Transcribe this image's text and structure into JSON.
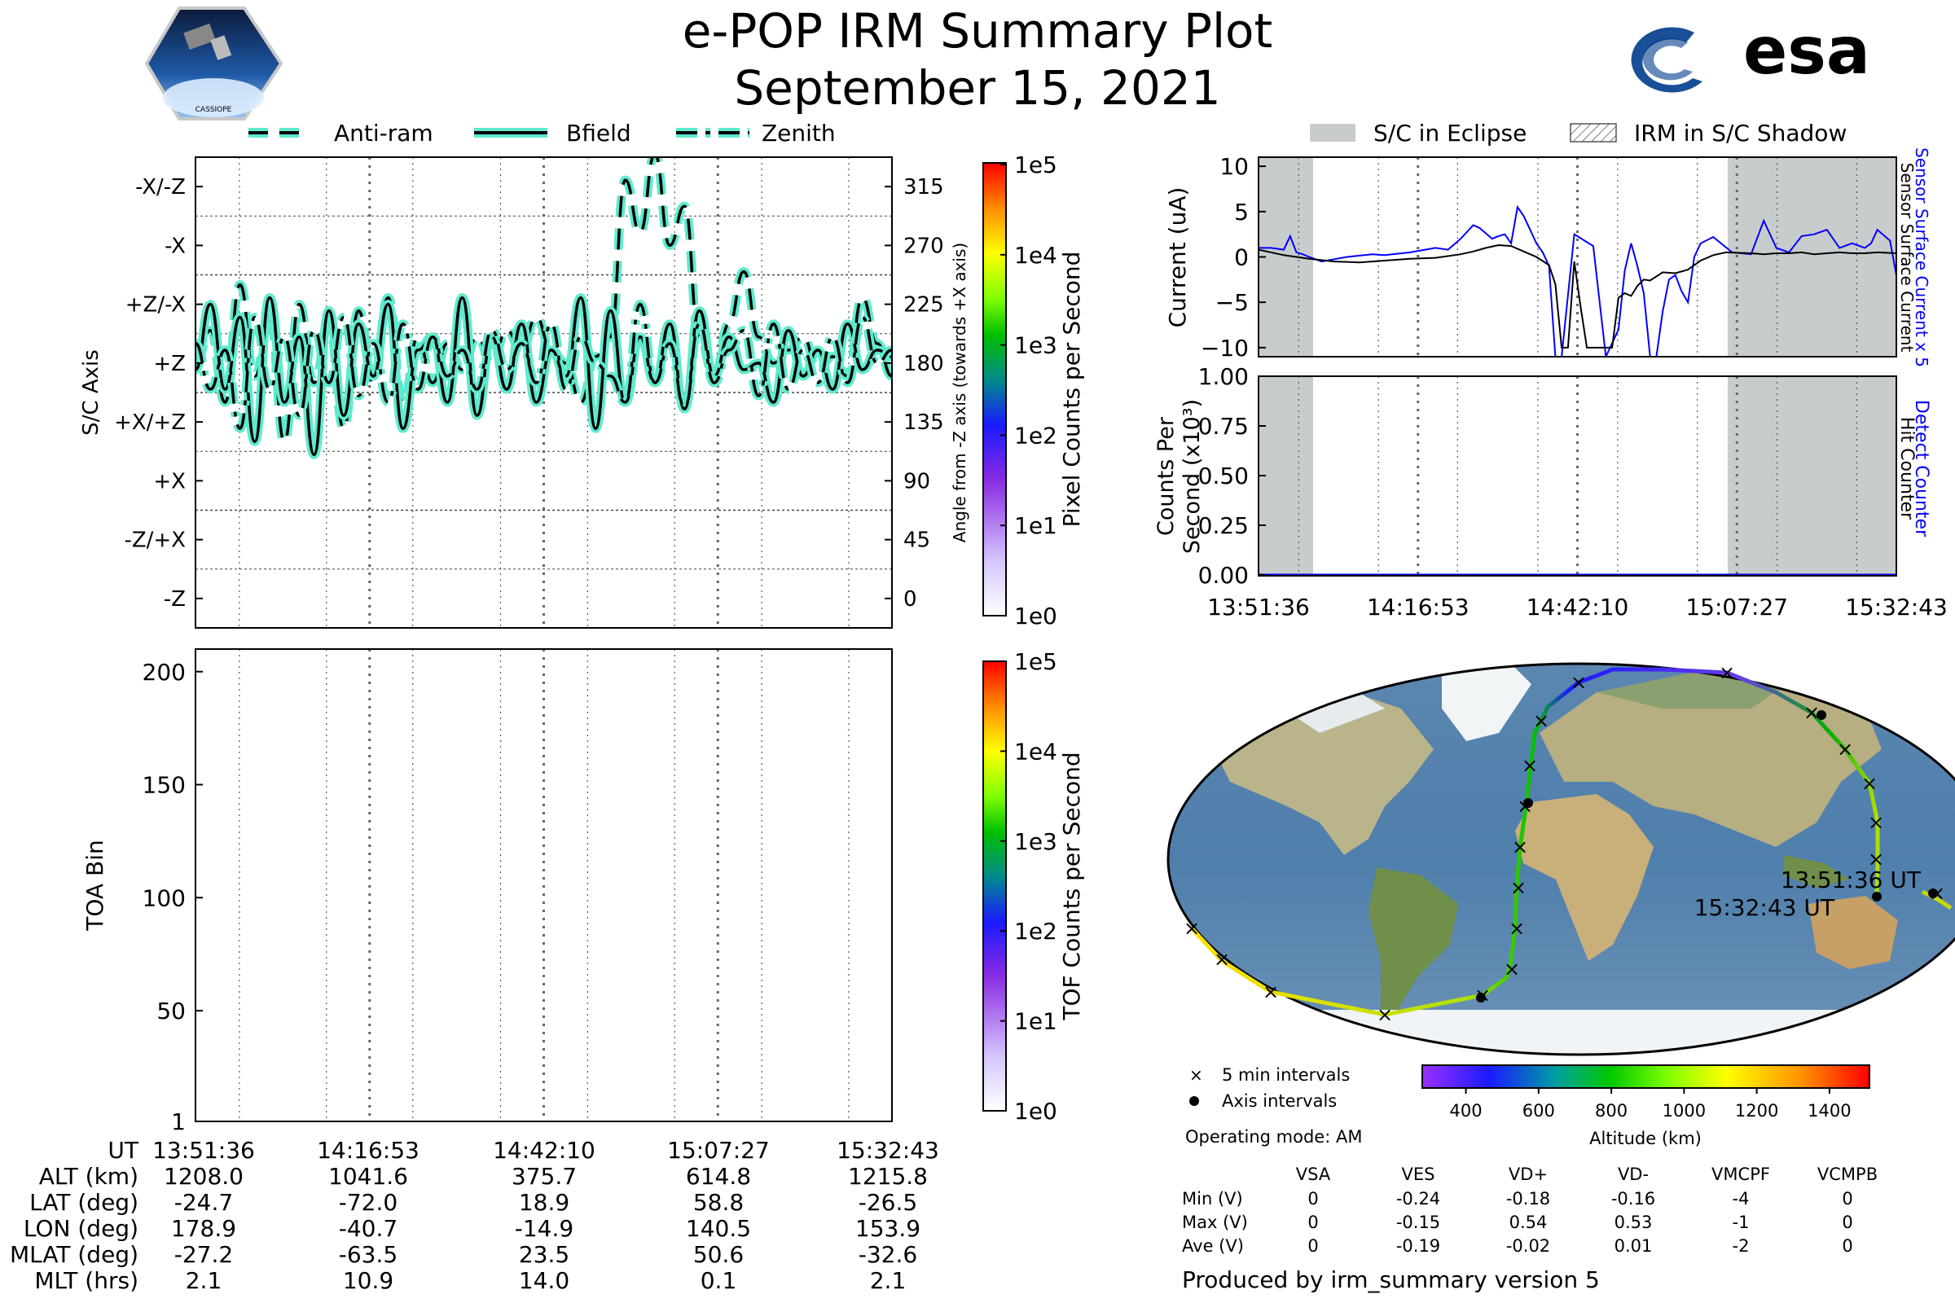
{
  "header": {
    "title": "e-POP IRM Summary Plot",
    "date": "September 15, 2021",
    "mission_badge_text": "CASSIOPE",
    "agency_logo_text": "esa",
    "colors": {
      "agency_blue": "#003C8C"
    }
  },
  "legend_lines": {
    "items": [
      "Anti-ram",
      "Bfield",
      "Zenith"
    ],
    "line_color": "#000000",
    "halo_color": "#5EEACD"
  },
  "legend_shade": {
    "items": [
      "S/C in Eclipse",
      "IRM in S/C Shadow"
    ],
    "eclipse_color": "#C9CCCC"
  },
  "chart_data": [
    {
      "id": "sc-axis-angle",
      "type": "line",
      "ylabel_left": "S/C Axis",
      "ylabel_right": "Angle from -Z axis (towards +X axis)",
      "left_ticks": [
        "-X/-Z",
        "-X",
        "+Z/-X",
        "+Z",
        "+X/+Z",
        "+X",
        "-Z/+X",
        "-Z"
      ],
      "right_ticks": [
        "315",
        "270",
        "225",
        "180",
        "135",
        "90",
        "45",
        "0"
      ],
      "right_tick_values": [
        315,
        270,
        225,
        180,
        135,
        90,
        45,
        0
      ],
      "ylim": [
        -22.5,
        337.5
      ],
      "x_ticks": [
        "13:51:36",
        "14:16:53",
        "14:42:10",
        "15:07:27",
        "15:32:43"
      ],
      "series": [
        {
          "name": "Anti-ram",
          "style": "dashed",
          "values": [
            180,
            205,
            150,
            240,
            170,
            215,
            120,
            225,
            165,
            210,
            130,
            220,
            165,
            230,
            150,
            200,
            165,
            195,
            175,
            200,
            180,
            205,
            190,
            215,
            190,
            180,
            150,
            185,
            200,
            320,
            280,
            340,
            270,
            300,
            200,
            170,
            210,
            250,
            200,
            180,
            190,
            200,
            175,
            185,
            170,
            230,
            195,
            170
          ]
        },
        {
          "name": "Bfield",
          "style": "solid",
          "values": [
            175,
            225,
            160,
            215,
            120,
            230,
            150,
            200,
            110,
            220,
            140,
            210,
            170,
            225,
            130,
            190,
            200,
            150,
            230,
            140,
            200,
            160,
            210,
            150,
            190,
            170,
            230,
            130,
            220,
            150,
            200,
            165,
            210,
            145,
            220,
            170,
            200,
            175,
            180,
            150,
            205,
            170,
            190,
            160,
            210,
            175,
            190,
            185
          ]
        },
        {
          "name": "Zenith",
          "style": "dashdot",
          "values": [
            195,
            160,
            190,
            130,
            215,
            160,
            200,
            140,
            205,
            165,
            215,
            155,
            195,
            150,
            210,
            160,
            200,
            170,
            190,
            160,
            205,
            175,
            195,
            165,
            210,
            160,
            200,
            180,
            170,
            150,
            225,
            165,
            195,
            145,
            210,
            165,
            190,
            205,
            155,
            210,
            160,
            190,
            165,
            200,
            165,
            215,
            180,
            190
          ]
        }
      ]
    },
    {
      "id": "toa-tof",
      "type": "heatmap",
      "ylabel": "TOA Bin",
      "y_ticks": [
        "1",
        "50",
        "100",
        "150",
        "200"
      ],
      "y_tick_values": [
        1,
        50,
        100,
        150,
        200
      ],
      "ylim": [
        1,
        210
      ],
      "x_ticks": [
        "13:51:36",
        "14:16:53",
        "14:42:10",
        "15:07:27",
        "15:32:43"
      ],
      "values": []
    },
    {
      "id": "sensor-current",
      "type": "line",
      "ylabel": "Current (uA)",
      "ylabel_right_blue": "Sensor Surface Current x 5",
      "ylabel_right_black": "Sensor Surface Current",
      "y_ticks": [
        "10",
        "5",
        "0",
        "−5",
        "−10"
      ],
      "y_tick_values": [
        10,
        5,
        0,
        -5,
        -10
      ],
      "ylim": [
        -11,
        11
      ],
      "xlim": [
        0,
        101
      ],
      "series": [
        {
          "name": "Sensor Surface Current x 5",
          "color": "#0000FF",
          "x": [
            0,
            2,
            4,
            5,
            6,
            7,
            8,
            10,
            14,
            18,
            20,
            24,
            28,
            30,
            32,
            34,
            35,
            37,
            38,
            39,
            40,
            41,
            42,
            43,
            44,
            45,
            46,
            47,
            48,
            50,
            53,
            55,
            57,
            58,
            59,
            60,
            61,
            62,
            63,
            64,
            65,
            66,
            67,
            68,
            69,
            70,
            72,
            75,
            78,
            80,
            82,
            84,
            86,
            88,
            90,
            92,
            94,
            96,
            97,
            98,
            100,
            101
          ],
          "y": [
            1,
            1,
            0.8,
            2.3,
            0.5,
            0.3,
            0,
            -0.5,
            0,
            0.3,
            0.2,
            0.5,
            1,
            0.8,
            2,
            3.5,
            3.2,
            2,
            2.3,
            2.5,
            1.5,
            5.5,
            4.5,
            3,
            1.5,
            0.5,
            -1,
            -11,
            -11,
            2.5,
            1.2,
            -11,
            -8,
            -1.5,
            1.5,
            -1,
            -4,
            -11,
            -11,
            -6,
            -2.5,
            -2,
            -3.8,
            -5,
            0,
            1.5,
            2.2,
            0.5,
            0.3,
            4,
            1,
            0.5,
            2.3,
            2.5,
            3,
            1,
            1.5,
            1,
            1.5,
            3,
            1.8,
            -2
          ]
        },
        {
          "name": "Sensor Surface Current",
          "color": "#000000",
          "x": [
            0,
            4,
            8,
            12,
            16,
            20,
            24,
            28,
            32,
            34,
            36,
            38,
            40,
            42,
            44,
            46,
            47,
            48,
            49,
            50,
            51,
            52,
            53,
            54,
            55,
            56,
            57,
            58,
            59,
            60,
            61,
            62,
            64,
            66,
            68,
            70,
            72,
            74,
            78,
            80,
            82,
            84,
            86,
            88,
            90,
            92,
            94,
            96,
            98,
            101
          ],
          "y": [
            0.8,
            0.2,
            -0.2,
            -0.5,
            -0.6,
            -0.4,
            -0.2,
            -0.1,
            0.3,
            0.6,
            1,
            1.3,
            1.2,
            0.6,
            0,
            -0.9,
            -3,
            -10,
            -10,
            -0.5,
            -5.5,
            -10,
            -10,
            -10,
            -10,
            -10,
            -4.5,
            -4,
            -4.3,
            -3.2,
            -2.5,
            -2.6,
            -1.7,
            -1.8,
            -1.4,
            -0.4,
            0.2,
            0.5,
            0.4,
            0.3,
            0.4,
            0.4,
            0.5,
            0.3,
            0.4,
            0.5,
            0.4,
            0.4,
            0.5,
            0.4
          ]
        }
      ]
    },
    {
      "id": "hit-counter",
      "type": "line",
      "ylabel": "Counts Per Second (x10³)",
      "ylabel_right_blue": "Detect Counter",
      "ylabel_right_black": "Hit Counter",
      "y_ticks": [
        "1.00",
        "0.75",
        "0.50",
        "0.25",
        "0.00"
      ],
      "y_tick_values": [
        1.0,
        0.75,
        0.5,
        0.25,
        0.0
      ],
      "ylim": [
        0,
        1
      ],
      "x_ticks": [
        "13:51:36",
        "14:16:53",
        "14:42:10",
        "15:07:27",
        "15:32:43"
      ],
      "series": [
        {
          "name": "Detect Counter",
          "color": "#0000FF",
          "values": [
            0,
            0
          ]
        }
      ]
    }
  ],
  "colorbars": {
    "pixel": {
      "label": "Pixel Counts per Second",
      "ticks": [
        "1e5",
        "1e4",
        "1e3",
        "1e2",
        "1e1",
        "1e0"
      ]
    },
    "tof": {
      "label": "TOF Counts per Second",
      "ticks": [
        "1e5",
        "1e4",
        "1e3",
        "1e2",
        "1e1",
        "1e0"
      ]
    },
    "altitude": {
      "label": "Altitude (km)",
      "ticks": [
        "400",
        "600",
        "800",
        "1000",
        "1200",
        "1400"
      ]
    }
  },
  "map": {
    "start_label": "13:51:36 UT",
    "end_label": "15:32:43 UT",
    "markers_legend": [
      "5 min intervals",
      "Axis intervals"
    ],
    "operating_mode": "Operating mode: AM"
  },
  "ephemeris": {
    "rows": [
      {
        "label": "UT",
        "values": [
          "13:51:36",
          "14:16:53",
          "14:42:10",
          "15:07:27",
          "15:32:43"
        ]
      },
      {
        "label": "ALT (km)",
        "values": [
          "1208.0",
          "1041.6",
          "375.7",
          "614.8",
          "1215.8"
        ]
      },
      {
        "label": "LAT (deg)",
        "values": [
          "-24.7",
          "-72.0",
          "18.9",
          "58.8",
          "-26.5"
        ]
      },
      {
        "label": "LON (deg)",
        "values": [
          "178.9",
          "-40.7",
          "-14.9",
          "140.5",
          "153.9"
        ]
      },
      {
        "label": "MLAT (deg)",
        "values": [
          "-27.2",
          "-63.5",
          "23.5",
          "50.6",
          "-32.6"
        ]
      },
      {
        "label": "MLT (hrs)",
        "values": [
          "2.1",
          "10.9",
          "14.0",
          "0.1",
          "2.1"
        ]
      }
    ]
  },
  "voltages": {
    "columns": [
      "VSA",
      "VES",
      "VD+",
      "VD-",
      "VMCPF",
      "VCMPB"
    ],
    "rows": [
      {
        "label": "Min (V)",
        "values": [
          "0",
          "-0.24",
          "-0.18",
          "-0.16",
          "-4",
          "0"
        ]
      },
      {
        "label": "Max (V)",
        "values": [
          "0",
          "-0.15",
          "0.54",
          "0.53",
          "-1",
          "0"
        ]
      },
      {
        "label": "Ave (V)",
        "values": [
          "0",
          "-0.19",
          "-0.02",
          "0.01",
          "-2",
          "0"
        ]
      }
    ]
  },
  "footer": {
    "produced_by": "Produced by irm_summary version 5"
  }
}
